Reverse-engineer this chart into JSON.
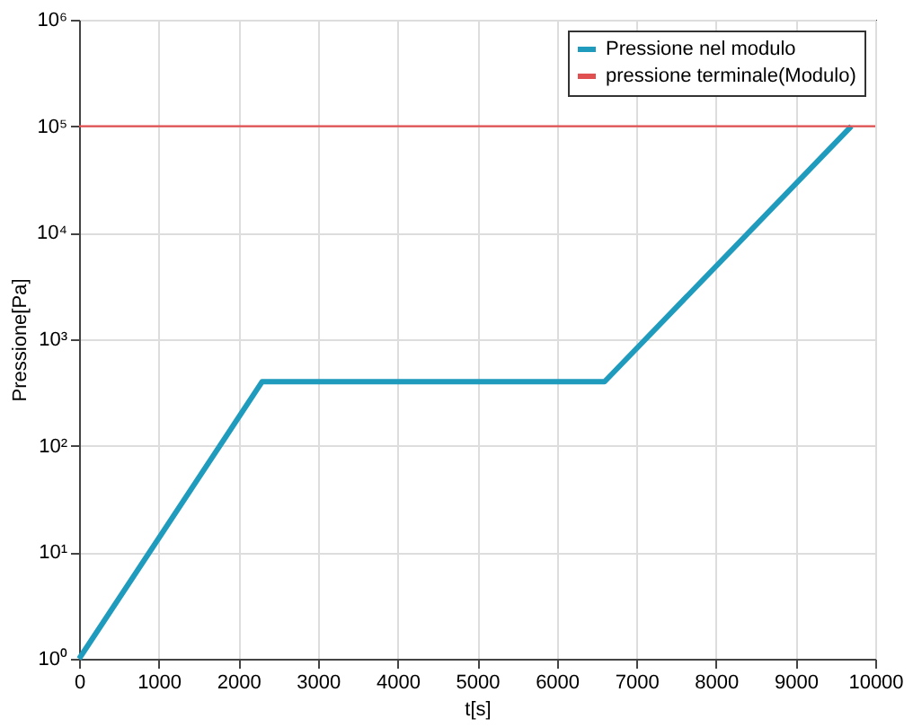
{
  "chart_data": {
    "type": "line",
    "xlabel": "t[s]",
    "ylabel": "Pressione[Pa]",
    "x": [
      0,
      2300,
      6600,
      9700
    ],
    "series": [
      {
        "name": "Pressione nel modulo",
        "color": "#1f9bbd",
        "values": [
          1,
          400,
          400,
          100000
        ]
      }
    ],
    "ref_lines": [
      {
        "axis": "y",
        "value": 100000,
        "label": "pressione terminale(Modulo)",
        "color": "#e05050"
      }
    ],
    "log": "y",
    "xlim": [
      0,
      10000
    ],
    "xticks": [
      0,
      1000,
      2000,
      3000,
      4000,
      5000,
      6000,
      7000,
      8000,
      9000,
      10000
    ],
    "ylim": [
      1,
      1000000
    ],
    "yticks": [
      {
        "value": 1,
        "label": "10⁰"
      },
      {
        "value": 10,
        "label": "10¹"
      },
      {
        "value": 100,
        "label": "10²"
      },
      {
        "value": 1000,
        "label": "10³"
      },
      {
        "value": 10000,
        "label": "10⁴"
      },
      {
        "value": 100000,
        "label": "10⁵"
      },
      {
        "value": 1000000,
        "label": "10⁶"
      }
    ],
    "grid": true,
    "legend": "top right",
    "line_style": "solid",
    "marker": "none"
  }
}
